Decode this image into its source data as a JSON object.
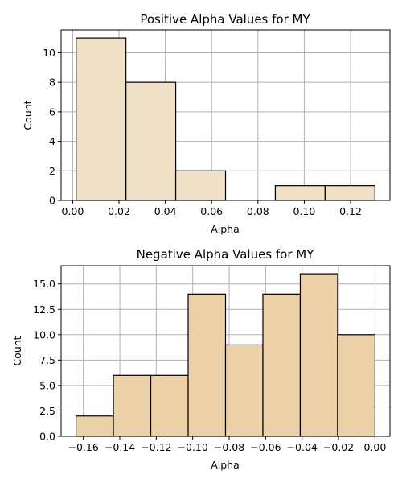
{
  "chart_data": [
    {
      "type": "bar",
      "title": "Positive Alpha Values for MY",
      "xlabel": "Alpha",
      "ylabel": "Count",
      "bar_color": "#f0e0c6",
      "bins": [
        {
          "x0": 0.0015,
          "x1": 0.023,
          "count": 11
        },
        {
          "x0": 0.023,
          "x1": 0.0445,
          "count": 8
        },
        {
          "x0": 0.0445,
          "x1": 0.066,
          "count": 2
        },
        {
          "x0": 0.066,
          "x1": 0.0875,
          "count": 0
        },
        {
          "x0": 0.0875,
          "x1": 0.109,
          "count": 1
        },
        {
          "x0": 0.109,
          "x1": 0.1305,
          "count": 1
        }
      ],
      "xlim": [
        -0.005,
        0.137
      ],
      "ylim": [
        0,
        11.55
      ],
      "xticks": [
        0.0,
        0.02,
        0.04,
        0.06,
        0.08,
        0.1,
        0.12
      ],
      "xtick_labels": [
        "0.00",
        "0.02",
        "0.04",
        "0.06",
        "0.08",
        "0.10",
        "0.12"
      ],
      "yticks": [
        0,
        2,
        4,
        6,
        8,
        10
      ],
      "ytick_labels": [
        "0",
        "2",
        "4",
        "6",
        "8",
        "10"
      ],
      "grid": true
    },
    {
      "type": "bar",
      "title": "Negative Alpha Values for MY",
      "xlabel": "Alpha",
      "ylabel": "Count",
      "bar_color": "#ebd0a8",
      "bins": [
        {
          "x0": -0.164,
          "x1": -0.1435,
          "count": 2
        },
        {
          "x0": -0.1435,
          "x1": -0.123,
          "count": 6
        },
        {
          "x0": -0.123,
          "x1": -0.1025,
          "count": 6
        },
        {
          "x0": -0.1025,
          "x1": -0.082,
          "count": 14
        },
        {
          "x0": -0.082,
          "x1": -0.0615,
          "count": 9
        },
        {
          "x0": -0.0615,
          "x1": -0.041,
          "count": 14
        },
        {
          "x0": -0.041,
          "x1": -0.0205,
          "count": 16
        },
        {
          "x0": -0.0205,
          "x1": 0.0,
          "count": 10
        }
      ],
      "xlim": [
        -0.1722,
        0.0082
      ],
      "ylim": [
        0,
        16.8
      ],
      "xticks": [
        -0.16,
        -0.14,
        -0.12,
        -0.1,
        -0.08,
        -0.06,
        -0.04,
        -0.02,
        0.0
      ],
      "xtick_labels": [
        "−0.16",
        "−0.14",
        "−0.12",
        "−0.10",
        "−0.08",
        "−0.06",
        "−0.04",
        "−0.02",
        "0.00"
      ],
      "yticks": [
        0,
        2.5,
        5,
        7.5,
        10,
        12.5,
        15
      ],
      "ytick_labels": [
        "0.0",
        "2.5",
        "5.0",
        "7.5",
        "10.0",
        "12.5",
        "15.0"
      ],
      "grid": true
    }
  ]
}
